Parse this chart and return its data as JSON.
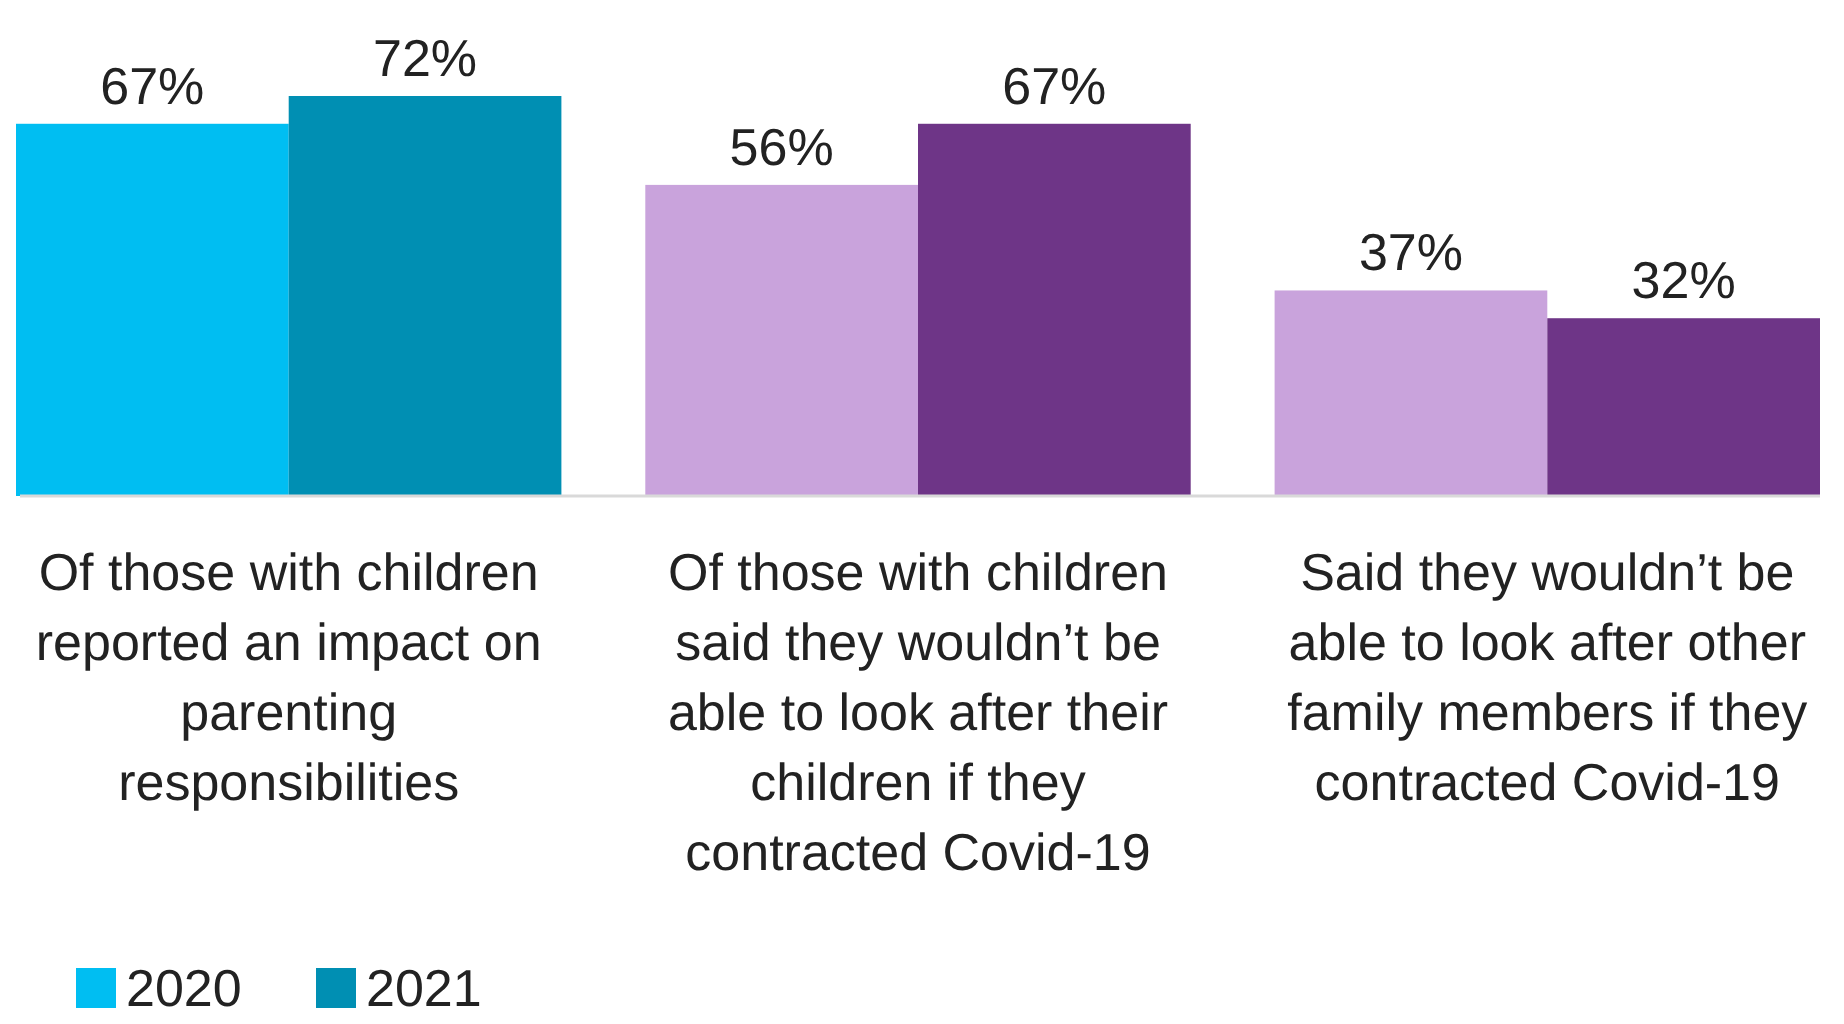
{
  "chart_data": {
    "type": "bar",
    "categories": [
      "Of those with children reported an impact on parenting responsibilities",
      "Of those with children said they wouldn’t be able to look after their children if they contracted Covid-19",
      "Said they wouldn’t be able to look after other family members if they contracted Covid-19"
    ],
    "series": [
      {
        "name": "2020",
        "color": "#00bef2",
        "colors": [
          "#00bef2",
          "#c9a3dc",
          "#c9a3dc"
        ],
        "values": [
          67,
          56,
          37
        ],
        "value_labels": [
          "67%",
          "56%",
          "37%"
        ]
      },
      {
        "name": "2021",
        "color": "#008fb3",
        "colors": [
          "#008fb3",
          "#6e3587",
          "#6e3587"
        ],
        "values": [
          72,
          67,
          32
        ],
        "value_labels": [
          "72%",
          "67%",
          "32%"
        ]
      }
    ],
    "legend": "bottom left"
  }
}
